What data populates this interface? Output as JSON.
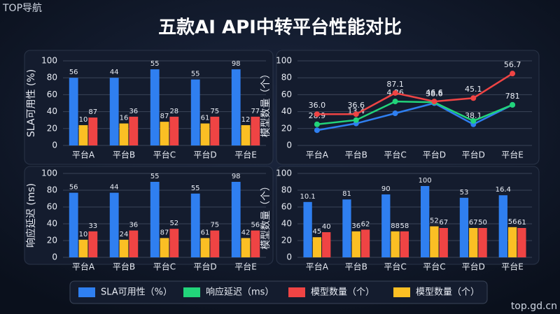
{
  "watermark": "TOP导航",
  "site": "top.gd.cn",
  "title": "五款AI API中转平台性能对比",
  "chart_data": [
    {
      "type": "bar",
      "ylabel": "SLA可用性 (%)",
      "categories": [
        "平台A",
        "平台B",
        "平台C",
        "平台D",
        "平台E"
      ],
      "ylim": [
        0,
        100
      ],
      "yticks": [
        0,
        20,
        40,
        60,
        80,
        100
      ],
      "grid": true,
      "series": [
        {
          "color": "#2f7ff0",
          "values": [
            80,
            80,
            90,
            78,
            90
          ],
          "annotations": [
            "56",
            "44",
            "55",
            "55",
            "98"
          ]
        },
        {
          "color": "#fbbf24",
          "values": [
            24,
            26,
            28,
            26,
            24
          ],
          "annotations": [
            "10",
            "16",
            "87",
            "61",
            "12"
          ]
        },
        {
          "color": "#ef4444",
          "values": [
            33,
            34,
            34,
            34,
            34
          ],
          "annotations": [
            "87",
            "36",
            "28",
            "75",
            "77"
          ]
        }
      ]
    },
    {
      "type": "line",
      "ylabel": "模型数量（个）",
      "categories": [
        "平台A",
        "平台B",
        "平台C",
        "平台D",
        "平台D",
        "平台E"
      ],
      "ylim": [
        0,
        100
      ],
      "yticks": [
        0,
        20,
        40,
        60,
        80,
        100
      ],
      "grid": true,
      "series": [
        {
          "color": "#2f7ff0",
          "values": [
            18,
            26,
            38,
            50,
            25,
            48
          ],
          "annotations": [
            null,
            null,
            null,
            null,
            "38.1",
            null
          ]
        },
        {
          "color": "#22d47a",
          "values": [
            25,
            30,
            52,
            51,
            29,
            48
          ],
          "annotations": [
            "28.9",
            "13.4",
            "4.36",
            "38.6",
            null,
            "781"
          ]
        },
        {
          "color": "#ef4444",
          "values": [
            37,
            37,
            62,
            52,
            56,
            85
          ],
          "annotations": [
            "36.0",
            "36.6",
            "87.1",
            "46.6",
            "45.1",
            "56.7"
          ]
        }
      ]
    },
    {
      "type": "bar",
      "ylabel": "响应延迟 (ms)",
      "categories": [
        "平台A",
        "平台B",
        "平台C",
        "平台D",
        "平台E"
      ],
      "ylim": [
        0,
        100
      ],
      "yticks": [
        0,
        20,
        40,
        60,
        80,
        100
      ],
      "grid": true,
      "series": [
        {
          "color": "#2f7ff0",
          "values": [
            77,
            77,
            90,
            76,
            90
          ],
          "annotations": [
            "56",
            "44",
            "55",
            "55",
            "98"
          ]
        },
        {
          "color": "#fbbf24",
          "values": [
            21,
            21,
            23,
            23,
            23
          ],
          "annotations": [
            "10",
            "24",
            "87",
            "61",
            "42"
          ]
        },
        {
          "color": "#ef4444",
          "values": [
            31,
            32,
            34,
            32,
            32
          ],
          "annotations": [
            "33",
            "36",
            "52",
            "75",
            "56"
          ]
        }
      ]
    },
    {
      "type": "bar",
      "ylabel": "模型数量（个）",
      "categories": [
        "平台A",
        "平台B",
        "平台C",
        "平台C",
        "平台D",
        "平台E"
      ],
      "ylim": [
        0,
        100
      ],
      "yticks": [
        0,
        20,
        40,
        60,
        80,
        100
      ],
      "grid": true,
      "series": [
        {
          "color": "#2f7ff0",
          "values": [
            66,
            69,
            75,
            85,
            71,
            74
          ],
          "annotations": [
            "10.1",
            "81",
            "90",
            "100",
            "53",
            "16.4"
          ]
        },
        {
          "color": "#fbbf24",
          "values": [
            24,
            31,
            31,
            37,
            35,
            36
          ],
          "annotations": [
            "45",
            "36",
            "88",
            "52",
            "67",
            "56"
          ]
        },
        {
          "color": "#ef4444",
          "values": [
            30,
            33,
            31,
            35,
            35,
            35
          ],
          "annotations": [
            "40",
            "62",
            "58",
            "67",
            "50",
            "61"
          ]
        }
      ]
    }
  ],
  "legend": [
    {
      "label": "SLA可用性（%）",
      "color": "#2f7ff0"
    },
    {
      "label": "响应延迟（ms）",
      "color": "#22d47a"
    },
    {
      "label": "模型数量（个）",
      "color": "#ef4444"
    },
    {
      "label": "模型数量（个）",
      "color": "#fbbf24"
    }
  ]
}
